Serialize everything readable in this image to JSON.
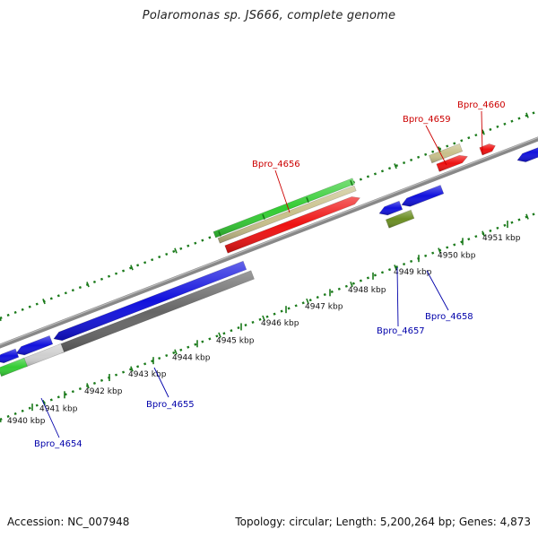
{
  "title": "Polaromonas sp. JS666, complete genome",
  "footer": {
    "accession": "Accession: NC_007948",
    "topology": "Topology: circular; Length: 5,200,264 bp; Genes: 4,873"
  },
  "scale": {
    "unit": "kbp",
    "ticks": [
      {
        "value": 4940,
        "label": "4940 kbp"
      },
      {
        "value": 4941,
        "label": "4941 kbp"
      },
      {
        "value": 4942,
        "label": "4942 kbp"
      },
      {
        "value": 4943,
        "label": "4943 kbp"
      },
      {
        "value": 4944,
        "label": "4944 kbp"
      },
      {
        "value": 4945,
        "label": "4945 kbp"
      },
      {
        "value": 4946,
        "label": "4946 kbp"
      },
      {
        "value": 4947,
        "label": "4947 kbp"
      },
      {
        "value": 4948,
        "label": "4948 kbp"
      },
      {
        "value": 4949,
        "label": "4949 kbp"
      },
      {
        "value": 4950,
        "label": "4950 kbp"
      },
      {
        "value": 4951,
        "label": "4951 kbp"
      }
    ]
  },
  "colors": {
    "forward_gene": "#ee1111",
    "reverse_gene": "#1111dd",
    "backbone": "#888888",
    "scale_ticks": "#1a7a1a",
    "rna_green": "#33cc33",
    "khaki": "#c8c08a",
    "dark_gray": "#666666",
    "light_gray": "#cfcfcf",
    "olive": "#6b8e23",
    "label_forward": "#cc0000",
    "label_reverse": "#0000aa"
  },
  "gene_labels": [
    {
      "id": "Bpro_4654",
      "text": "Bpro_4654",
      "strand": "reverse"
    },
    {
      "id": "Bpro_4655",
      "text": "Bpro_4655",
      "strand": "reverse"
    },
    {
      "id": "Bpro_4656",
      "text": "Bpro_4656",
      "strand": "forward"
    },
    {
      "id": "Bpro_4657",
      "text": "Bpro_4657",
      "strand": "reverse"
    },
    {
      "id": "Bpro_4658",
      "text": "Bpro_4658",
      "strand": "reverse"
    },
    {
      "id": "Bpro_4659",
      "text": "Bpro_4659",
      "strand": "forward"
    },
    {
      "id": "Bpro_4660",
      "text": "Bpro_4660",
      "strand": "forward"
    }
  ]
}
